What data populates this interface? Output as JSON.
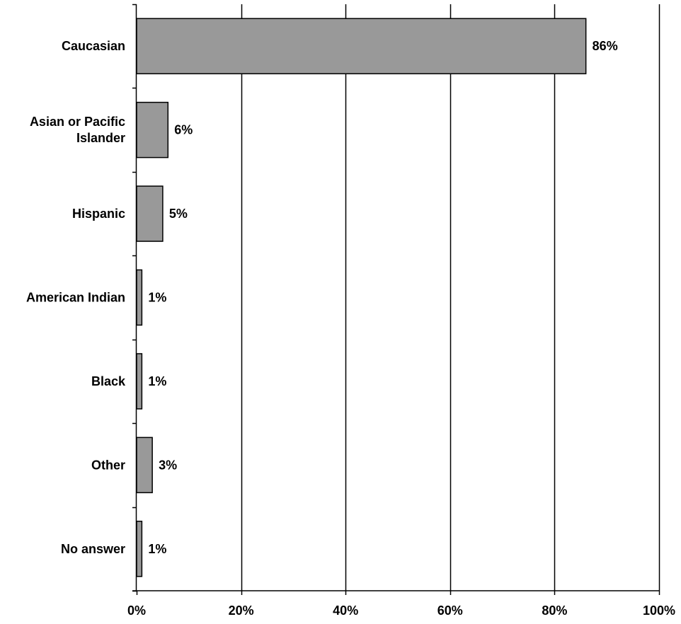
{
  "colors": {
    "bar_fill": "#999999",
    "bar_stroke": "#000000",
    "gridline": "#000000",
    "axis": "#000000",
    "background": "#ffffff"
  },
  "chart_data": {
    "type": "bar",
    "orientation": "horizontal",
    "categories": [
      [
        "Caucasian"
      ],
      [
        "Asian or Pacific",
        "Islander"
      ],
      [
        "Hispanic"
      ],
      [
        "American Indian"
      ],
      [
        "Black"
      ],
      [
        "Other"
      ],
      [
        "No answer"
      ]
    ],
    "values": [
      86,
      6,
      5,
      1,
      1,
      3,
      1
    ],
    "data_labels": [
      "86%",
      "6%",
      "5%",
      "1%",
      "1%",
      "3%",
      "1%"
    ],
    "x_ticks": [
      0,
      20,
      40,
      60,
      80,
      100
    ],
    "x_tick_labels": [
      "0%",
      "20%",
      "40%",
      "60%",
      "80%",
      "100%"
    ],
    "xlim": [
      0,
      100
    ],
    "grid": "vertical-major",
    "legend": "none",
    "title": "",
    "xlabel": "",
    "ylabel": ""
  }
}
